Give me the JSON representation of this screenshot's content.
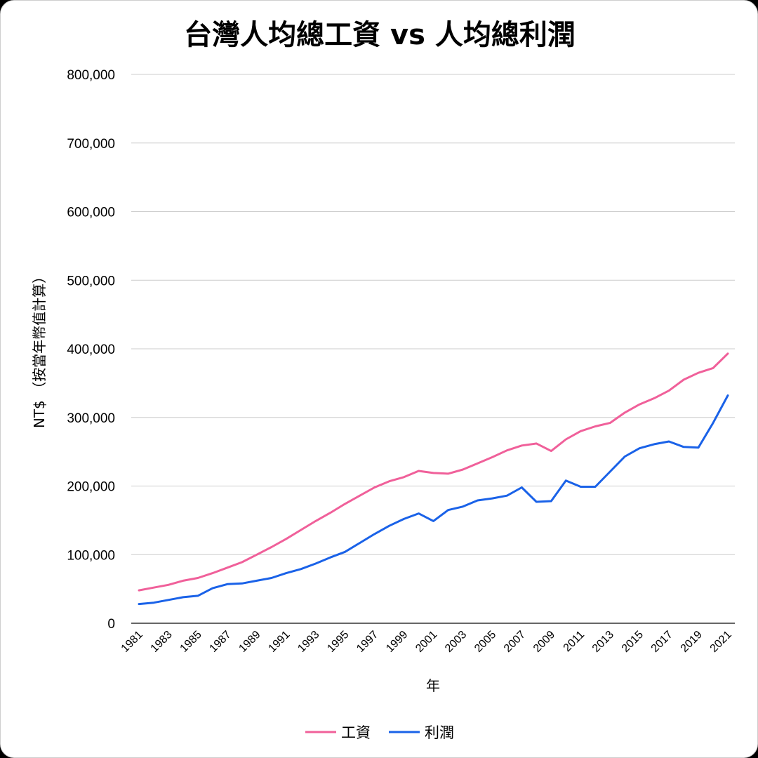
{
  "chart_data": {
    "type": "line",
    "title": "台灣人均總工資 vs 人均總利潤",
    "xlabel": "年",
    "ylabel": "NT$ （按當年幣值計算）",
    "ylim": [
      0,
      800000
    ],
    "yticks": [
      0,
      100000,
      200000,
      300000,
      400000,
      500000,
      600000,
      700000,
      800000
    ],
    "ytick_labels": [
      "0",
      "100,000",
      "200,000",
      "300,000",
      "400,000",
      "500,000",
      "600,000",
      "700,000",
      "800,000"
    ],
    "x": [
      1981,
      1982,
      1983,
      1984,
      1985,
      1986,
      1987,
      1988,
      1989,
      1990,
      1991,
      1992,
      1993,
      1994,
      1995,
      1996,
      1997,
      1998,
      1999,
      2000,
      2001,
      2002,
      2003,
      2004,
      2005,
      2006,
      2007,
      2008,
      2009,
      2010,
      2011,
      2012,
      2013,
      2014,
      2015,
      2016,
      2017,
      2018,
      2019,
      2020,
      2021
    ],
    "xtick_labels": [
      "1981",
      "1983",
      "1985",
      "1987",
      "1989",
      "1991",
      "1993",
      "1995",
      "1997",
      "1999",
      "2001",
      "2003",
      "2005",
      "2007",
      "2009",
      "2011",
      "2013",
      "2015",
      "2017",
      "2019",
      "2021"
    ],
    "grid": true,
    "legend_position": "bottom",
    "series": [
      {
        "name": "工資",
        "color": "#f0609a",
        "values": [
          48000,
          52000,
          56000,
          62000,
          66000,
          73000,
          81000,
          89000,
          100000,
          111000,
          123000,
          136000,
          149000,
          161000,
          174000,
          186000,
          198000,
          207000,
          213000,
          222000,
          219000,
          218000,
          224000,
          233000,
          242000,
          252000,
          259000,
          262000,
          251000,
          268000,
          280000,
          287000,
          292000,
          307000,
          319000,
          328000,
          339000,
          355000,
          365000,
          372000,
          393000
        ]
      },
      {
        "name": "利潤",
        "color": "#1a62e8",
        "values": [
          28000,
          30000,
          34000,
          38000,
          40000,
          51000,
          57000,
          58000,
          62000,
          66000,
          73000,
          79000,
          87000,
          96000,
          104000,
          117000,
          130000,
          142000,
          152000,
          160000,
          149000,
          165000,
          170000,
          179000,
          182000,
          186000,
          198000,
          177000,
          178000,
          208000,
          199000,
          199000,
          221000,
          243000,
          255000,
          261000,
          265000,
          257000,
          256000,
          292000,
          332000
        ]
      }
    ]
  }
}
